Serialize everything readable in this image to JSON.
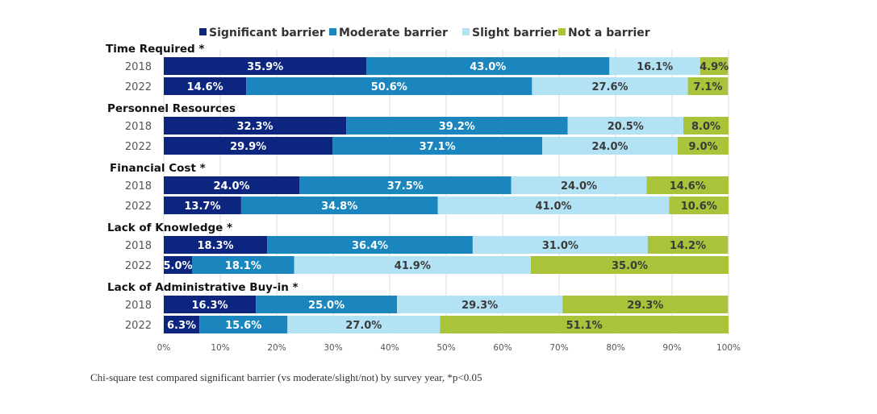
{
  "chart_data": {
    "type": "bar",
    "orientation": "horizontal",
    "stacked": true,
    "percent_stacked": true,
    "title": "",
    "xlabel": "",
    "ylabel": "",
    "xlim": [
      0,
      100
    ],
    "x_ticks": [
      "0%",
      "10%",
      "20%",
      "30%",
      "40%",
      "50%",
      "60%",
      "70%",
      "80%",
      "90%",
      "100%"
    ],
    "grid": true,
    "legend_position": "top",
    "series": [
      {
        "name": "Significant barrier",
        "color": "#0c2680",
        "label_color": "#ffffff"
      },
      {
        "name": "Moderate barrier",
        "color": "#1a86bd",
        "label_color": "#ffffff"
      },
      {
        "name": "Slight barrier",
        "color": "#b3e2f5",
        "label_color": "#3a3a3a"
      },
      {
        "name": "Not a barrier",
        "color": "#a9c43a",
        "label_color": "#3a3a3a"
      }
    ],
    "groups": [
      {
        "title": "Time Required *",
        "rows": [
          {
            "year": "2018",
            "values": [
              35.9,
              43.0,
              16.1,
              4.9
            ]
          },
          {
            "year": "2022",
            "values": [
              14.6,
              50.6,
              27.6,
              7.1
            ]
          }
        ]
      },
      {
        "title": "Personnel Resources",
        "rows": [
          {
            "year": "2018",
            "values": [
              32.3,
              39.2,
              20.5,
              8.0
            ]
          },
          {
            "year": "2022",
            "values": [
              29.9,
              37.1,
              24.0,
              9.0
            ]
          }
        ]
      },
      {
        "title": "Financial Cost *",
        "rows": [
          {
            "year": "2018",
            "values": [
              24.0,
              37.5,
              24.0,
              14.6
            ]
          },
          {
            "year": "2022",
            "values": [
              13.7,
              34.8,
              41.0,
              10.6
            ]
          }
        ]
      },
      {
        "title": "Lack of Knowledge *",
        "rows": [
          {
            "year": "2018",
            "values": [
              18.3,
              36.4,
              31.0,
              14.2
            ]
          },
          {
            "year": "2022",
            "values": [
              5.0,
              18.1,
              41.9,
              35.0
            ]
          }
        ]
      },
      {
        "title": "Lack of Administrative Buy-in *",
        "rows": [
          {
            "year": "2018",
            "values": [
              16.3,
              25.0,
              29.3,
              29.3
            ]
          },
          {
            "year": "2022",
            "values": [
              6.3,
              15.6,
              27.0,
              51.1
            ]
          }
        ]
      }
    ]
  },
  "footnote": "Chi-square test compared significant barrier (vs moderate/slight/not) by survey year,  *p<0.05"
}
